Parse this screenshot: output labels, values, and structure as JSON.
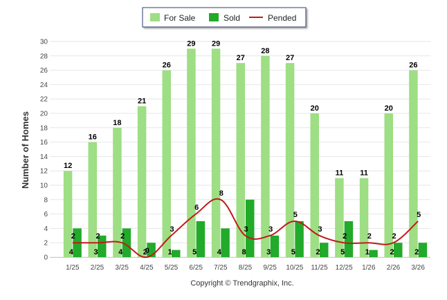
{
  "chart_data": {
    "type": "bar",
    "categories": [
      "1/25",
      "2/25",
      "3/25",
      "4/25",
      "5/25",
      "6/25",
      "7/25",
      "8/25",
      "9/25",
      "10/25",
      "11/25",
      "12/25",
      "1/26",
      "2/26",
      "3/26"
    ],
    "series": [
      {
        "name": "For Sale",
        "type": "bar",
        "color": "#9ede84",
        "values": [
          12,
          16,
          18,
          21,
          26,
          29,
          29,
          27,
          28,
          27,
          20,
          11,
          11,
          20,
          26
        ]
      },
      {
        "name": "Sold",
        "type": "bar",
        "color": "#22aa2a",
        "values": [
          4,
          3,
          4,
          2,
          1,
          5,
          4,
          8,
          3,
          5,
          2,
          5,
          1,
          2,
          2
        ]
      },
      {
        "name": "Pended",
        "type": "line",
        "color": "#c01a1a",
        "values": [
          2,
          2,
          2,
          0,
          3,
          6,
          8,
          3,
          3,
          5,
          3,
          2,
          2,
          2,
          5
        ]
      }
    ],
    "ylabel": "Number of Homes",
    "xlabel": "",
    "ylim": [
      0,
      30
    ],
    "yticks": [
      0,
      2,
      4,
      6,
      8,
      10,
      12,
      14,
      16,
      18,
      20,
      22,
      24,
      26,
      28,
      30
    ],
    "grid": true,
    "legend": "top-center"
  },
  "copyright": "Copyright © Trendgraphix, Inc."
}
